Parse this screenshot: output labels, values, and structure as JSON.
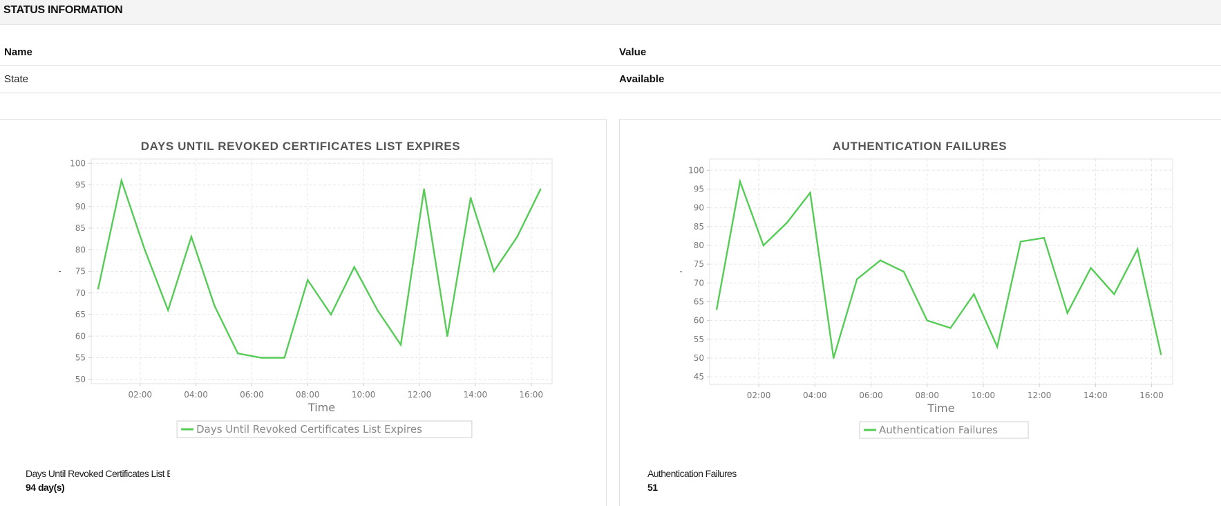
{
  "section": {
    "title": "STATUS INFORMATION"
  },
  "status_table": {
    "headers": [
      "Name",
      "Value"
    ],
    "rows": [
      {
        "name": "State",
        "value": "Available"
      }
    ]
  },
  "colors": {
    "series": "#55cc55",
    "grid": "#e6e6e6",
    "axis": "#cccccc",
    "tick": "#777777",
    "title": "#555555"
  },
  "metrics": [
    {
      "label": "Days Until Revoked Certificates List Expires",
      "value": "94 day(s)"
    },
    {
      "label": "Authentication Failures",
      "value": "51"
    }
  ],
  "chart_data": [
    {
      "type": "line",
      "title": "DAYS UNTIL REVOKED CERTIFICATES LIST EXPIRES",
      "xlabel": "Time",
      "ylabel": "",
      "x_ticks": [
        "02:00",
        "04:00",
        "06:00",
        "08:00",
        "10:00",
        "12:00",
        "14:00",
        "16:00"
      ],
      "x_range": [
        "00:15",
        "16:45"
      ],
      "ylim": [
        49,
        101
      ],
      "y_ticks": [
        50,
        55,
        60,
        65,
        70,
        75,
        80,
        85,
        90,
        95,
        100
      ],
      "grid": true,
      "legend_position": "bottom-center",
      "series": [
        {
          "name": "Days Until Revoked Certificates List Expires",
          "x": [
            "00:30",
            "01:20",
            "02:10",
            "03:00",
            "03:50",
            "04:40",
            "05:30",
            "06:20",
            "07:10",
            "08:00",
            "08:50",
            "09:40",
            "10:30",
            "11:20",
            "12:10",
            "13:00",
            "13:50",
            "14:40",
            "15:30",
            "16:20"
          ],
          "values": [
            71,
            96,
            80,
            66,
            83,
            67,
            56,
            55,
            55,
            73,
            65,
            76,
            66,
            58,
            94,
            60,
            92,
            75,
            83,
            94
          ]
        }
      ]
    },
    {
      "type": "line",
      "title": "AUTHENTICATION FAILURES",
      "xlabel": "Time",
      "ylabel": "",
      "x_ticks": [
        "02:00",
        "04:00",
        "06:00",
        "08:00",
        "10:00",
        "12:00",
        "14:00",
        "16:00"
      ],
      "x_range": [
        "00:15",
        "16:45"
      ],
      "ylim": [
        43,
        103
      ],
      "y_ticks": [
        45,
        50,
        55,
        60,
        65,
        70,
        75,
        80,
        85,
        90,
        95,
        100
      ],
      "grid": true,
      "legend_position": "bottom-center",
      "series": [
        {
          "name": "Authentication Failures",
          "x": [
            "00:30",
            "01:20",
            "02:10",
            "03:00",
            "03:50",
            "04:40",
            "05:30",
            "06:20",
            "07:10",
            "08:00",
            "08:50",
            "09:40",
            "10:30",
            "11:20",
            "12:10",
            "13:00",
            "13:50",
            "14:40",
            "15:30",
            "16:20"
          ],
          "values": [
            63,
            97,
            80,
            86,
            94,
            50,
            71,
            76,
            73,
            60,
            58,
            67,
            53,
            81,
            82,
            62,
            74,
            67,
            79,
            51
          ]
        }
      ]
    }
  ]
}
